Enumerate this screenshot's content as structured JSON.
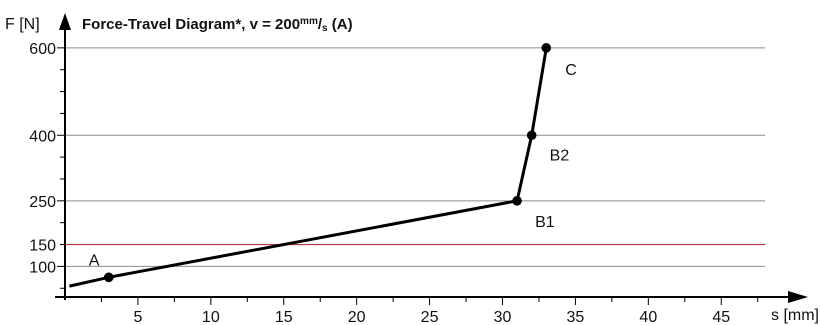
{
  "chart_data": {
    "type": "line",
    "title_main": "Force-Travel Diagram*, v = 200",
    "title_unit_num": "mm",
    "title_unit_sep": "/",
    "title_unit_den": "s",
    "title_suffix": " (A)",
    "xlabel": "s [mm]",
    "ylabel": "F [N]",
    "xlim": [
      0,
      48
    ],
    "ylim": [
      30,
      650
    ],
    "x_ticks": [
      5,
      10,
      15,
      20,
      25,
      30,
      35,
      40,
      45
    ],
    "x_tick_labels": [
      "5",
      "10",
      "15",
      "20",
      "25",
      "30",
      "35",
      "40",
      "45"
    ],
    "y_ticks": [
      100,
      250,
      400,
      600
    ],
    "y_tick_labels": [
      "100",
      "250",
      "400",
      "600"
    ],
    "reference_line": {
      "value": 150,
      "label": "150",
      "color": "#b53a3a"
    },
    "grid": true,
    "series": [
      {
        "x": [
          0.3,
          3,
          31,
          32,
          33
        ],
        "y": [
          55,
          75,
          250,
          400,
          600
        ]
      }
    ],
    "points": [
      {
        "x": 3,
        "y": 75,
        "label": "A"
      },
      {
        "x": 31,
        "y": 250,
        "label": "B1"
      },
      {
        "x": 32,
        "y": 400,
        "label": "B2"
      },
      {
        "x": 33,
        "y": 600,
        "label": "C"
      }
    ]
  }
}
